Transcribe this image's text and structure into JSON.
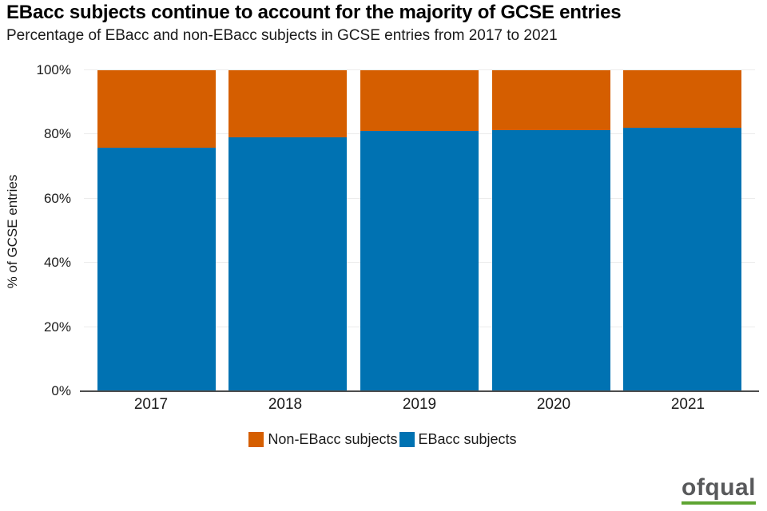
{
  "header": {
    "title": "EBacc subjects continue to account for the majority of GCSE entries",
    "subtitle": "Percentage of EBacc and non-EBacc subjects in GCSE entries from 2017 to 2021"
  },
  "chart_data": {
    "type": "bar",
    "subtype": "stacked-percentage",
    "categories": [
      "2017",
      "2018",
      "2019",
      "2020",
      "2021"
    ],
    "series": [
      {
        "name": "EBacc subjects",
        "color": "#0072B2",
        "values": [
          75.8,
          79.0,
          81.0,
          81.4,
          82.0
        ]
      },
      {
        "name": "Non-EBacc subjects",
        "color": "#D55E00",
        "values": [
          24.2,
          21.0,
          19.0,
          18.6,
          18.0
        ]
      }
    ],
    "title": "EBacc subjects continue to account for the majority of GCSE entries",
    "xlabel": "",
    "ylabel": "% of GCSE entries",
    "ylim": [
      0,
      100
    ],
    "yticks": [
      0,
      20,
      40,
      60,
      80,
      100
    ],
    "ytick_labels": [
      "0%",
      "20%",
      "40%",
      "60%",
      "80%",
      "100%"
    ],
    "grid": "horizontal",
    "legend_position": "bottom-center",
    "legend": [
      {
        "label": "Non-EBacc subjects",
        "color": "#D55E00"
      },
      {
        "label": "EBacc subjects",
        "color": "#0072B2"
      }
    ]
  },
  "footer": {
    "logo_text": "ofqual",
    "logo_text_color": "#58595b",
    "logo_underline_color": "#5ea432"
  }
}
